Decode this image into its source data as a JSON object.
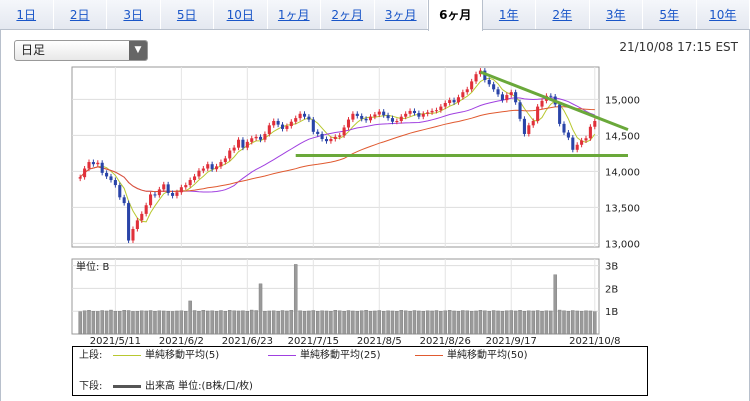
{
  "tabs": [
    "1日",
    "2日",
    "3日",
    "5日",
    "10日",
    "1ヶ月",
    "2ヶ月",
    "3ヶ月",
    "6ヶ月",
    "1年",
    "2年",
    "3年",
    "5年",
    "10年"
  ],
  "active_tab": "6ヶ月",
  "period_select": {
    "value": "日足"
  },
  "timestamp": "21/10/08 17:15 EST",
  "chart_data": {
    "type": "candlestick",
    "price_axis": {
      "ticks": [
        "15,000",
        "14,500",
        "14,000",
        "13,500",
        "13,000"
      ],
      "ylim": [
        12950,
        15450
      ]
    },
    "volume_axis": {
      "label": "単位: B",
      "ticks": [
        "3B",
        "2B",
        "1B"
      ],
      "ylim": [
        0,
        3.2
      ]
    },
    "x_tick_labels": [
      "2021/5/11",
      "2021/6/2",
      "2021/6/23",
      "2021/7/15",
      "2021/8/5",
      "2021/8/26",
      "2021/9/17",
      "2021/10/8"
    ],
    "close": [
      13920,
      14040,
      14130,
      14100,
      14120,
      13980,
      13930,
      13880,
      13810,
      13640,
      13560,
      13040,
      13200,
      13320,
      13410,
      13530,
      13680,
      13670,
      13750,
      13820,
      13700,
      13660,
      13710,
      13780,
      13810,
      13880,
      13930,
      14010,
      14040,
      14100,
      14030,
      14070,
      14130,
      14180,
      14290,
      14330,
      14440,
      14330,
      14410,
      14460,
      14480,
      14440,
      14520,
      14640,
      14700,
      14650,
      14590,
      14630,
      14690,
      14740,
      14800,
      14760,
      14720,
      14550,
      14520,
      14450,
      14420,
      14450,
      14480,
      14500,
      14610,
      14720,
      14800,
      14770,
      14730,
      14710,
      14760,
      14790,
      14830,
      14780,
      14740,
      14690,
      14700,
      14760,
      14800,
      14840,
      14810,
      14760,
      14800,
      14820,
      14840,
      14850,
      14900,
      14950,
      14990,
      14960,
      15030,
      15100,
      15140,
      15250,
      15350,
      15400,
      15270,
      15210,
      15140,
      15070,
      14990,
      15060,
      15100,
      14960,
      14730,
      14520,
      14640,
      14700,
      14900,
      14980,
      15050,
      15040,
      14930,
      14660,
      14540,
      14470,
      14300,
      14370,
      14430,
      14460,
      14620,
      14700
    ],
    "volume": [
      0.98,
      1.02,
      1.04,
      1.0,
      0.99,
      1.03,
      1.01,
      1.05,
      1.0,
      1.0,
      1.04,
      1.03,
      0.99,
      1.0,
      1.02,
      1.01,
      1.03,
      1.0,
      1.02,
      1.01,
      1.0,
      0.99,
      1.01,
      1.02,
      1.0,
      1.45,
      1.03,
      1.0,
      1.04,
      1.01,
      1.02,
      1.0,
      1.03,
      1.0,
      1.04,
      1.02,
      1.01,
      1.02,
      1.0,
      1.05,
      1.03,
      2.2,
      1.0,
      1.01,
      1.02,
      1.0,
      1.03,
      1.01,
      1.04,
      3.05,
      1.02,
      1.0,
      1.01,
      1.03,
      1.0,
      1.02,
      1.01,
      1.0,
      1.04,
      1.02,
      1.0,
      1.03,
      1.01,
      1.0,
      1.02,
      1.04,
      1.0,
      1.01,
      1.03,
      1.0,
      1.02,
      1.01,
      1.0,
      1.04,
      1.02,
      1.0,
      1.03,
      1.01,
      1.0,
      1.02,
      1.01,
      1.03,
      1.0,
      1.02,
      1.04,
      1.01,
      1.0,
      1.03,
      1.02,
      1.0,
      1.01,
      1.04,
      1.02,
      1.0,
      1.03,
      1.01,
      1.0,
      1.02,
      1.03,
      1.01,
      1.04,
      1.0,
      1.02,
      1.01,
      1.03,
      1.0,
      1.02,
      1.01,
      2.6,
      1.05,
      1.02,
      1.0,
      1.03,
      1.01,
      1.0,
      1.02,
      1.01,
      0.98
    ]
  },
  "legend": {
    "upper_label": "上段:",
    "lower_label": "下段:",
    "ma5": {
      "label": "単純移動平均(5)",
      "color": "#b8c830"
    },
    "ma25": {
      "label": "単純移動平均(25)",
      "color": "#a040e0"
    },
    "ma50": {
      "label": "単純移動平均(50)",
      "color": "#e05a30"
    },
    "volume": {
      "label": "出来高 単位:(B株/口/枚)",
      "color": "#555555"
    }
  },
  "colors": {
    "up": "#e0303a",
    "down": "#2a44a8",
    "trend": "#6aa83a"
  }
}
